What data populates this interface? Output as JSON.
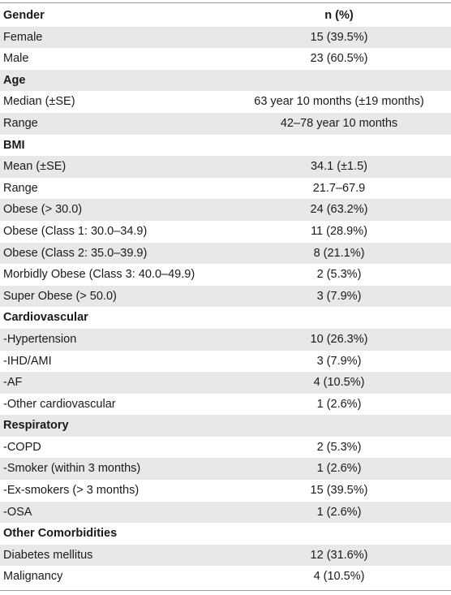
{
  "table": {
    "header": {
      "label": "Gender",
      "value": "n (%)"
    },
    "rows": [
      {
        "label": "Female",
        "value": "15 (39.5%)"
      },
      {
        "label": "Male",
        "value": "23 (60.5%)"
      },
      {
        "label": "Age",
        "value": ""
      },
      {
        "label": "Median (±SE)",
        "value": "63 year 10 months (±19 months)"
      },
      {
        "label": "Range",
        "value": "42–78 year 10 months"
      },
      {
        "label": "BMI",
        "value": ""
      },
      {
        "label": "Mean (±SE)",
        "value": "34.1 (±1.5)"
      },
      {
        "label": "Range",
        "value": "21.7–67.9"
      },
      {
        "label": "Obese (> 30.0)",
        "value": "24 (63.2%)"
      },
      {
        "label": "Obese (Class 1: 30.0–34.9)",
        "value": "11 (28.9%)"
      },
      {
        "label": "Obese (Class 2: 35.0–39.9)",
        "value": "8 (21.1%)"
      },
      {
        "label": "Morbidly Obese (Class 3: 40.0–49.9)",
        "value": "2 (5.3%)"
      },
      {
        "label": "Super Obese (> 50.0)",
        "value": "3 (7.9%)"
      },
      {
        "label": "Cardiovascular",
        "value": ""
      },
      {
        "label": "-Hypertension",
        "value": "10 (26.3%)"
      },
      {
        "label": "-IHD/AMI",
        "value": "3 (7.9%)"
      },
      {
        "label": "-AF",
        "value": "4 (10.5%)"
      },
      {
        "label": "-Other cardiovascular",
        "value": "1 (2.6%)"
      },
      {
        "label": "Respiratory",
        "value": ""
      },
      {
        "label": "-COPD",
        "value": "2 (5.3%)"
      },
      {
        "label": "-Smoker (within 3 months)",
        "value": "1 (2.6%)"
      },
      {
        "label": "-Ex-smokers (> 3 months)",
        "value": "15 (39.5%)"
      },
      {
        "label": "-OSA",
        "value": "1 (2.6%)"
      },
      {
        "label": "Other Comorbidities",
        "value": ""
      },
      {
        "label": "Diabetes mellitus",
        "value": "12 (31.6%)"
      },
      {
        "label": "Malignancy",
        "value": "4 (10.5%)"
      }
    ]
  }
}
